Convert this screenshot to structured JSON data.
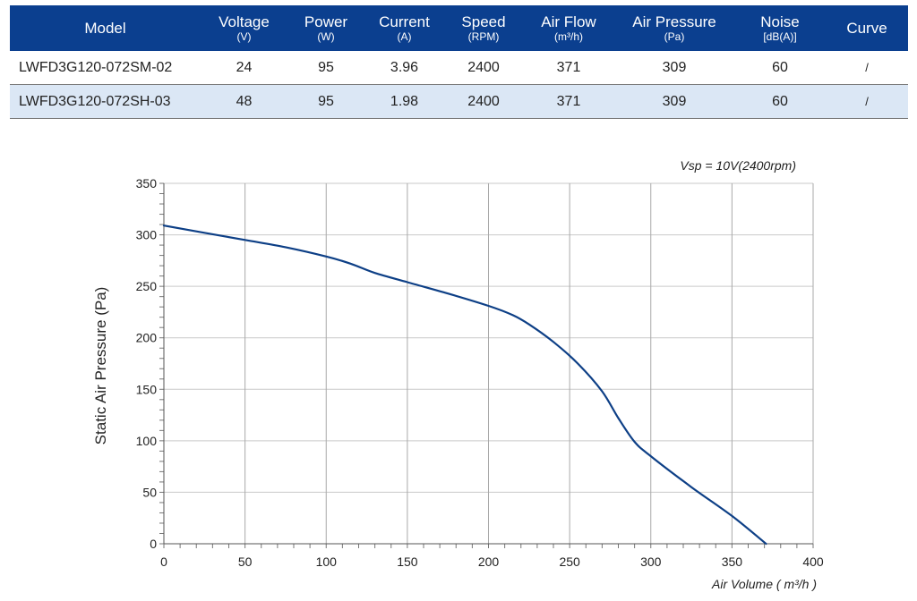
{
  "table": {
    "headers": [
      {
        "label": "Model",
        "unit": ""
      },
      {
        "label": "Voltage",
        "unit": "(V)"
      },
      {
        "label": "Power",
        "unit": "(W)"
      },
      {
        "label": "Current",
        "unit": "(A)"
      },
      {
        "label": "Speed",
        "unit": "(RPM)"
      },
      {
        "label": "Air Flow",
        "unit": "(m³/h)"
      },
      {
        "label": "Air Pressure",
        "unit": "(Pa)"
      },
      {
        "label": "Noise",
        "unit": "[dB(A)]"
      },
      {
        "label": "Curve",
        "unit": ""
      }
    ],
    "rows": [
      [
        "LWFD3G120-072SM-02",
        "24",
        "95",
        "3.96",
        "2400",
        "371",
        "309",
        "60",
        "/"
      ],
      [
        "LWFD3G120-072SH-03",
        "48",
        "95",
        "1.98",
        "2400",
        "371",
        "309",
        "60",
        "/"
      ]
    ],
    "colors": {
      "header_bg": "#0b3f8f",
      "alt_row_bg": "#dbe7f5"
    }
  },
  "chart_data": {
    "type": "line",
    "annotation": "Vsp = 10V(2400rpm)",
    "xlabel": "Air Volume ( m³/h )",
    "ylabel": "Static Air Pressure  (Pa)",
    "xlim": [
      0,
      400
    ],
    "ylim": [
      0,
      350
    ],
    "xticks": [
      0,
      50,
      100,
      150,
      200,
      250,
      300,
      350,
      400
    ],
    "yticks": [
      0,
      50,
      100,
      150,
      200,
      250,
      300,
      350
    ],
    "grid": true,
    "line_color": "#0d3f86",
    "series": [
      {
        "x": [
          0,
          25,
          50,
          75,
          100,
          115,
          130,
          150,
          175,
          200,
          215,
          225,
          240,
          255,
          270,
          280,
          290,
          300,
          325,
          350,
          371
        ],
        "y": [
          309,
          302,
          295,
          288,
          279,
          272,
          263,
          254,
          243,
          231,
          222,
          213,
          196,
          175,
          148,
          122,
          99,
          85,
          55,
          27,
          0
        ]
      }
    ]
  }
}
